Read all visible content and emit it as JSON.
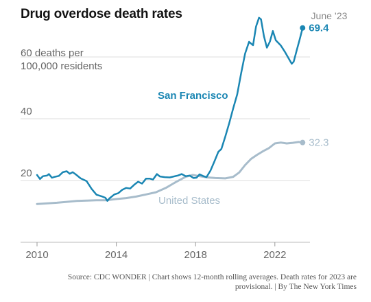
{
  "title": "Drug overdose death rates",
  "source": "Source: CDC WONDER | Chart shows 12-month rolling averages. Death rates for 2023 are provisional. | By The New York Times",
  "chart_data": {
    "type": "line",
    "title": "Drug overdose death rates",
    "ylabel_lines": [
      "60 deaths per",
      "100,000 residents"
    ],
    "xlim": [
      2010,
      2023.5
    ],
    "ylim": [
      0,
      75
    ],
    "x_ticks": [
      "2010",
      "2014",
      "2018",
      "2022"
    ],
    "y_ticks": [
      "40",
      "20"
    ],
    "annotation_date": "June ’23",
    "grid": "horizontal",
    "colors": {
      "sf": "#1a86b3",
      "us": "#a7bccb",
      "axis_text": "#666666",
      "grid": "#dddddd"
    },
    "series": [
      {
        "name": "San Francisco",
        "end_label": "69.4",
        "points": [
          [
            2010.0,
            21.8
          ],
          [
            2010.15,
            20.5
          ],
          [
            2010.3,
            21.4
          ],
          [
            2010.5,
            21.6
          ],
          [
            2010.6,
            22.1
          ],
          [
            2010.75,
            20.9
          ],
          [
            2010.9,
            21.2
          ],
          [
            2011.1,
            21.5
          ],
          [
            2011.3,
            22.7
          ],
          [
            2011.5,
            23.0
          ],
          [
            2011.65,
            22.2
          ],
          [
            2011.8,
            22.7
          ],
          [
            2011.95,
            22.0
          ],
          [
            2012.2,
            20.7
          ],
          [
            2012.5,
            19.8
          ],
          [
            2012.75,
            17.3
          ],
          [
            2013.0,
            15.4
          ],
          [
            2013.25,
            14.9
          ],
          [
            2013.45,
            14.4
          ],
          [
            2013.55,
            13.4
          ],
          [
            2013.65,
            14.2
          ],
          [
            2013.9,
            15.5
          ],
          [
            2014.1,
            15.9
          ],
          [
            2014.3,
            17.0
          ],
          [
            2014.5,
            17.6
          ],
          [
            2014.7,
            17.4
          ],
          [
            2014.9,
            18.6
          ],
          [
            2015.1,
            19.6
          ],
          [
            2015.3,
            19.0
          ],
          [
            2015.5,
            20.6
          ],
          [
            2015.7,
            20.6
          ],
          [
            2015.85,
            20.3
          ],
          [
            2016.05,
            22.1
          ],
          [
            2016.2,
            21.3
          ],
          [
            2016.45,
            21.1
          ],
          [
            2016.7,
            21.0
          ],
          [
            2016.9,
            21.3
          ],
          [
            2017.1,
            21.6
          ],
          [
            2017.3,
            22.1
          ],
          [
            2017.5,
            21.4
          ],
          [
            2017.7,
            21.6
          ],
          [
            2017.9,
            20.8
          ],
          [
            2018.05,
            20.9
          ],
          [
            2018.2,
            22.0
          ],
          [
            2018.4,
            21.4
          ],
          [
            2018.55,
            21.1
          ],
          [
            2018.75,
            23.2
          ],
          [
            2018.95,
            26.2
          ],
          [
            2019.15,
            29.3
          ],
          [
            2019.3,
            30.2
          ],
          [
            2019.5,
            34.3
          ],
          [
            2019.7,
            38.6
          ],
          [
            2019.9,
            43.4
          ],
          [
            2020.1,
            47.9
          ],
          [
            2020.3,
            54.8
          ],
          [
            2020.5,
            61.1
          ],
          [
            2020.7,
            64.9
          ],
          [
            2020.9,
            63.8
          ],
          [
            2021.05,
            69.8
          ],
          [
            2021.2,
            72.7
          ],
          [
            2021.3,
            72.2
          ],
          [
            2021.45,
            66.7
          ],
          [
            2021.6,
            63.0
          ],
          [
            2021.75,
            65.0
          ],
          [
            2021.9,
            68.4
          ],
          [
            2022.05,
            65.4
          ],
          [
            2022.3,
            63.7
          ],
          [
            2022.5,
            61.7
          ],
          [
            2022.7,
            59.5
          ],
          [
            2022.85,
            57.8
          ],
          [
            2022.95,
            58.5
          ],
          [
            2023.1,
            62.1
          ],
          [
            2023.25,
            65.6
          ],
          [
            2023.4,
            69.4
          ]
        ]
      },
      {
        "name": "United States",
        "end_label": "32.3",
        "points": [
          [
            2010.0,
            12.4
          ],
          [
            2011.0,
            12.8
          ],
          [
            2011.5,
            13.1
          ],
          [
            2012.0,
            13.4
          ],
          [
            2012.5,
            13.5
          ],
          [
            2013.0,
            13.6
          ],
          [
            2013.5,
            13.6
          ],
          [
            2014.0,
            14.0
          ],
          [
            2014.5,
            14.3
          ],
          [
            2015.0,
            14.8
          ],
          [
            2015.5,
            15.5
          ],
          [
            2016.0,
            16.2
          ],
          [
            2016.5,
            17.6
          ],
          [
            2017.0,
            19.5
          ],
          [
            2017.5,
            21.2
          ],
          [
            2017.85,
            21.8
          ],
          [
            2018.2,
            21.4
          ],
          [
            2018.6,
            21.0
          ],
          [
            2019.0,
            20.8
          ],
          [
            2019.5,
            20.7
          ],
          [
            2019.9,
            21.2
          ],
          [
            2020.2,
            22.6
          ],
          [
            2020.5,
            25.0
          ],
          [
            2020.8,
            27.0
          ],
          [
            2021.1,
            28.3
          ],
          [
            2021.4,
            29.5
          ],
          [
            2021.7,
            30.5
          ],
          [
            2022.0,
            32.0
          ],
          [
            2022.3,
            32.3
          ],
          [
            2022.6,
            32.0
          ],
          [
            2022.9,
            32.2
          ],
          [
            2023.2,
            32.5
          ],
          [
            2023.4,
            32.3
          ]
        ]
      }
    ]
  }
}
